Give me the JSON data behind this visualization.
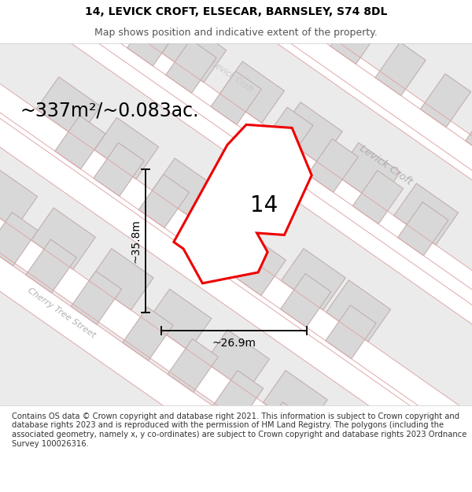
{
  "title": "14, LEVICK CROFT, ELSECAR, BARNSLEY, S74 8DL",
  "subtitle": "Map shows position and indicative extent of the property.",
  "area_label": "~337m²/~0.083ac.",
  "number_label": "14",
  "dim_height": "~35.8m",
  "dim_width": "~26.9m",
  "footer": "Contains OS data © Crown copyright and database right 2021. This information is subject to Crown copyright and database rights 2023 and is reproduced with the permission of HM Land Registry. The polygons (including the associated geometry, namely x, y co-ordinates) are subject to Crown copyright and database rights 2023 Ordnance Survey 100026316.",
  "bg_color": "#ebebeb",
  "map_bg": "#ebebeb",
  "road_color": "#ffffff",
  "building_fill": "#d8d8d8",
  "building_edge": "#c0a8a8",
  "highlight_fill": "#ffffff",
  "highlight_edge": "#ee0000",
  "road_outline_color": "#e0a8a8",
  "street_label_color": "#b8b8b8",
  "levick_croft_label_color": "#b0b0b0",
  "cherry_tree_label_color": "#b0b0b0",
  "title_fontsize": 10,
  "subtitle_fontsize": 9,
  "area_fontsize": 17,
  "number_fontsize": 20,
  "dim_fontsize": 10,
  "footer_fontsize": 7.2,
  "map_rotation_deg": -35
}
